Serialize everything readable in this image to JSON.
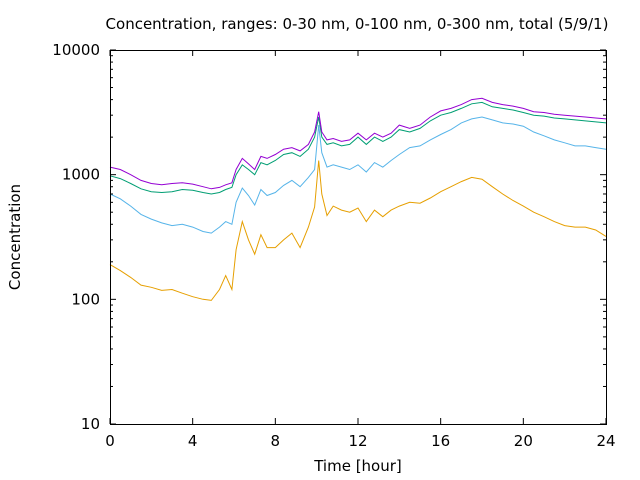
{
  "chart_data": {
    "type": "line",
    "title": "Concentration, ranges: 0-30 nm, 0-100 nm, 0-300 nm, total (5/9/1)",
    "xlabel": "Time [hour]",
    "ylabel": "Concentration",
    "xlim": [
      0,
      24
    ],
    "ylim": [
      10,
      10000
    ],
    "yscale": "log",
    "grid": false,
    "legend": "none",
    "x_ticks": [
      0,
      4,
      8,
      12,
      16,
      20,
      24
    ],
    "x_tick_labels": [
      "0",
      "4",
      "8",
      "12",
      "16",
      "20",
      "24"
    ],
    "y_ticks": [
      10,
      100,
      1000,
      10000
    ],
    "y_tick_labels": [
      "10",
      "100",
      "1000",
      "10000"
    ],
    "series": [
      {
        "color": "#e69f00",
        "x": [
          0,
          0.5,
          1,
          1.5,
          2,
          2.5,
          3,
          3.5,
          4,
          4.5,
          4.9,
          5.3,
          5.6,
          5.9,
          6.1,
          6.4,
          6.7,
          7.0,
          7.3,
          7.6,
          8.0,
          8.4,
          8.8,
          9.2,
          9.6,
          9.9,
          10.1,
          10.25,
          10.5,
          10.8,
          11.2,
          11.6,
          12.0,
          12.4,
          12.8,
          13.2,
          13.6,
          14.0,
          14.5,
          15.0,
          15.5,
          16.0,
          16.5,
          17.0,
          17.5,
          18.0,
          18.5,
          19.0,
          19.5,
          20.0,
          20.5,
          21.0,
          21.5,
          22.0,
          22.5,
          23.0,
          23.5,
          24.0
        ],
        "y": [
          190,
          170,
          150,
          130,
          125,
          118,
          120,
          112,
          105,
          100,
          98,
          120,
          155,
          120,
          250,
          420,
          300,
          230,
          330,
          260,
          260,
          300,
          340,
          260,
          380,
          550,
          1300,
          700,
          470,
          560,
          520,
          500,
          540,
          420,
          520,
          460,
          520,
          560,
          600,
          590,
          650,
          730,
          800,
          880,
          950,
          920,
          800,
          700,
          620,
          560,
          500,
          460,
          420,
          390,
          380,
          380,
          360,
          320
        ]
      },
      {
        "color": "#56b4e9",
        "x": [
          0,
          0.5,
          1,
          1.5,
          2,
          2.5,
          3,
          3.5,
          4,
          4.5,
          4.9,
          5.3,
          5.6,
          5.9,
          6.1,
          6.4,
          6.7,
          7.0,
          7.3,
          7.6,
          8.0,
          8.4,
          8.8,
          9.2,
          9.6,
          9.9,
          10.1,
          10.25,
          10.5,
          10.8,
          11.2,
          11.6,
          12.0,
          12.4,
          12.8,
          13.2,
          13.6,
          14.0,
          14.5,
          15.0,
          15.5,
          16.0,
          16.5,
          17.0,
          17.5,
          18.0,
          18.5,
          19.0,
          19.5,
          20.0,
          20.5,
          21.0,
          21.5,
          22.0,
          22.5,
          23.0,
          23.5,
          24.0
        ],
        "y": [
          700,
          640,
          560,
          480,
          440,
          410,
          390,
          400,
          380,
          350,
          340,
          380,
          420,
          400,
          600,
          780,
          680,
          570,
          760,
          680,
          720,
          820,
          900,
          800,
          950,
          1100,
          2500,
          1500,
          1150,
          1200,
          1150,
          1100,
          1200,
          1050,
          1250,
          1150,
          1300,
          1450,
          1650,
          1700,
          1900,
          2100,
          2300,
          2600,
          2800,
          2900,
          2750,
          2600,
          2550,
          2450,
          2200,
          2050,
          1900,
          1800,
          1700,
          1700,
          1650,
          1600
        ]
      },
      {
        "color": "#009e73",
        "x": [
          0,
          0.5,
          1,
          1.5,
          2,
          2.5,
          3,
          3.5,
          4,
          4.5,
          4.9,
          5.3,
          5.6,
          5.9,
          6.1,
          6.4,
          6.7,
          7.0,
          7.3,
          7.6,
          8.0,
          8.4,
          8.8,
          9.2,
          9.6,
          9.9,
          10.1,
          10.25,
          10.5,
          10.8,
          11.2,
          11.6,
          12.0,
          12.4,
          12.8,
          13.2,
          13.6,
          14.0,
          14.5,
          15.0,
          15.5,
          16.0,
          16.5,
          17.0,
          17.5,
          18.0,
          18.5,
          19.0,
          19.5,
          20.0,
          20.5,
          21.0,
          21.5,
          22.0,
          22.5,
          23.0,
          23.5,
          24.0
        ],
        "y": [
          980,
          930,
          850,
          770,
          730,
          720,
          730,
          760,
          750,
          720,
          700,
          720,
          760,
          790,
          1000,
          1200,
          1100,
          1000,
          1250,
          1200,
          1300,
          1450,
          1500,
          1400,
          1600,
          2000,
          2900,
          2000,
          1750,
          1800,
          1700,
          1750,
          2000,
          1750,
          2000,
          1850,
          2000,
          2300,
          2200,
          2350,
          2700,
          3000,
          3150,
          3400,
          3700,
          3800,
          3500,
          3400,
          3300,
          3150,
          3000,
          2950,
          2850,
          2800,
          2750,
          2700,
          2650,
          2600
        ]
      },
      {
        "color": "#9400d3",
        "x": [
          0,
          0.5,
          1,
          1.5,
          2,
          2.5,
          3,
          3.5,
          4,
          4.5,
          4.9,
          5.3,
          5.6,
          5.9,
          6.1,
          6.4,
          6.7,
          7.0,
          7.3,
          7.6,
          8.0,
          8.4,
          8.8,
          9.2,
          9.6,
          9.9,
          10.1,
          10.25,
          10.5,
          10.8,
          11.2,
          11.6,
          12.0,
          12.4,
          12.8,
          13.2,
          13.6,
          14.0,
          14.5,
          15.0,
          15.5,
          16.0,
          16.5,
          17.0,
          17.5,
          18.0,
          18.5,
          19.0,
          19.5,
          20.0,
          20.5,
          21.0,
          21.5,
          22.0,
          22.5,
          23.0,
          23.5,
          24.0
        ],
        "y": [
          1150,
          1100,
          1000,
          900,
          850,
          830,
          850,
          860,
          840,
          800,
          770,
          790,
          830,
          860,
          1100,
          1350,
          1220,
          1100,
          1400,
          1350,
          1450,
          1600,
          1650,
          1550,
          1750,
          2200,
          3200,
          2200,
          1900,
          1950,
          1850,
          1900,
          2150,
          1900,
          2150,
          2000,
          2150,
          2500,
          2350,
          2500,
          2900,
          3250,
          3400,
          3650,
          4000,
          4100,
          3800,
          3650,
          3550,
          3400,
          3200,
          3150,
          3050,
          3000,
          2950,
          2900,
          2850,
          2800
        ]
      }
    ]
  }
}
